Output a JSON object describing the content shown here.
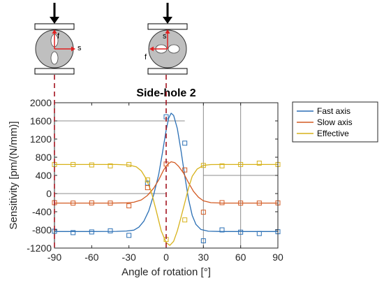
{
  "chart_data": {
    "type": "line",
    "title": "Side-hole 2",
    "xlabel": "Angle of rotation [°]",
    "ylabel": "Sensitivity [pm/(N/mm)]",
    "xlim": [
      -90,
      90
    ],
    "ylim": [
      -1200,
      2000
    ],
    "xticks": [
      -90,
      -60,
      -30,
      0,
      30,
      60,
      90
    ],
    "yticks": [
      -1200,
      -800,
      -400,
      0,
      400,
      800,
      1200,
      1600,
      2000
    ],
    "legend_position": "outside-right-top",
    "series": [
      {
        "name": "Fast axis",
        "color": "#2a6fb5",
        "marker": "square",
        "points": [
          [
            -90,
            -830
          ],
          [
            -75,
            -860
          ],
          [
            -60,
            -845
          ],
          [
            -45,
            -820
          ],
          [
            -30,
            -920
          ],
          [
            -15,
            230
          ],
          [
            0,
            1690
          ],
          [
            15,
            1110
          ],
          [
            30,
            -1040
          ],
          [
            45,
            -800
          ],
          [
            60,
            -850
          ],
          [
            75,
            -880
          ],
          [
            90,
            -840
          ]
        ],
        "fit": [
          [
            -90,
            -835
          ],
          [
            -60,
            -835
          ],
          [
            -40,
            -833
          ],
          [
            -32,
            -825
          ],
          [
            -26,
            -805
          ],
          [
            -22,
            -740
          ],
          [
            -18,
            -610
          ],
          [
            -14,
            -380
          ],
          [
            -10,
            -20
          ],
          [
            -6,
            420
          ],
          [
            -3,
            900
          ],
          [
            0,
            1400
          ],
          [
            2,
            1660
          ],
          [
            4,
            1770
          ],
          [
            6,
            1720
          ],
          [
            9,
            1430
          ],
          [
            12,
            940
          ],
          [
            15,
            380
          ],
          [
            18,
            -120
          ],
          [
            21,
            -480
          ],
          [
            24,
            -680
          ],
          [
            28,
            -790
          ],
          [
            34,
            -830
          ],
          [
            45,
            -835
          ],
          [
            60,
            -835
          ],
          [
            90,
            -835
          ]
        ]
      },
      {
        "name": "Slow axis",
        "color": "#d35a22",
        "marker": "square",
        "points": [
          [
            -90,
            -200
          ],
          [
            -75,
            -210
          ],
          [
            -60,
            -205
          ],
          [
            -45,
            -210
          ],
          [
            -30,
            -270
          ],
          [
            -15,
            130
          ],
          [
            0,
            650
          ],
          [
            15,
            520
          ],
          [
            30,
            -410
          ],
          [
            45,
            -200
          ],
          [
            60,
            -210
          ],
          [
            75,
            -210
          ],
          [
            90,
            -205
          ]
        ],
        "fit": [
          [
            -90,
            -210
          ],
          [
            -45,
            -210
          ],
          [
            -32,
            -205
          ],
          [
            -26,
            -190
          ],
          [
            -20,
            -140
          ],
          [
            -15,
            -40
          ],
          [
            -10,
            120
          ],
          [
            -6,
            300
          ],
          [
            -2,
            520
          ],
          [
            1,
            640
          ],
          [
            4,
            700
          ],
          [
            7,
            680
          ],
          [
            10,
            600
          ],
          [
            14,
            450
          ],
          [
            18,
            240
          ],
          [
            22,
            50
          ],
          [
            26,
            -80
          ],
          [
            30,
            -160
          ],
          [
            36,
            -200
          ],
          [
            45,
            -210
          ],
          [
            90,
            -210
          ]
        ]
      },
      {
        "name": "Effective",
        "color": "#d7b21a",
        "marker": "square",
        "points": [
          [
            -90,
            640
          ],
          [
            -75,
            640
          ],
          [
            -60,
            630
          ],
          [
            -45,
            610
          ],
          [
            -30,
            640
          ],
          [
            -15,
            300
          ],
          [
            0,
            -1010
          ],
          [
            15,
            -580
          ],
          [
            30,
            620
          ],
          [
            45,
            610
          ],
          [
            60,
            640
          ],
          [
            75,
            670
          ],
          [
            90,
            640
          ]
        ],
        "fit": [
          [
            -90,
            640
          ],
          [
            -40,
            640
          ],
          [
            -30,
            630
          ],
          [
            -24,
            590
          ],
          [
            -20,
            500
          ],
          [
            -16,
            320
          ],
          [
            -12,
            40
          ],
          [
            -8,
            -380
          ],
          [
            -4,
            -820
          ],
          [
            0,
            -1080
          ],
          [
            3,
            -1140
          ],
          [
            6,
            -1050
          ],
          [
            9,
            -820
          ],
          [
            12,
            -520
          ],
          [
            15,
            -200
          ],
          [
            18,
            120
          ],
          [
            21,
            380
          ],
          [
            25,
            540
          ],
          [
            30,
            620
          ],
          [
            36,
            638
          ],
          [
            45,
            640
          ],
          [
            90,
            640
          ]
        ]
      }
    ],
    "reference_lines": {
      "horizontal": [
        {
          "y": 1600,
          "x_from": -90,
          "x_to": 15
        },
        {
          "y": 400,
          "x_from": 30,
          "x_to": 90
        },
        {
          "y": 0,
          "x_from": -90,
          "x_to": 0
        }
      ],
      "vertical": [
        30,
        60
      ],
      "dashed": [
        -90,
        0
      ]
    }
  },
  "diagram": {
    "left_labels": [
      "f",
      "s"
    ],
    "right_labels": [
      "s",
      "f"
    ]
  }
}
